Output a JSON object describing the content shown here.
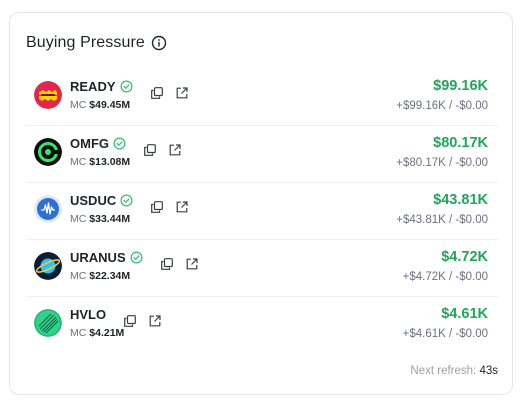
{
  "widget": {
    "title": "Buying Pressure",
    "info_icon": "info-circle-icon",
    "footer_label": "Next refresh:",
    "footer_value": "43s"
  },
  "colors": {
    "positive": "#22a45a",
    "verified": "#2fbf71",
    "muted": "#6b7280"
  },
  "tokens": [
    {
      "name": "READY",
      "mc_label": "MC",
      "mc_value": "$49.45M",
      "amount": "$99.16K",
      "delta": "+$99.16K / -$0.00",
      "logo_icon": "ready-token-logo",
      "logo_color": "#e2264d"
    },
    {
      "name": "OMFG",
      "mc_label": "MC",
      "mc_value": "$13.08M",
      "amount": "$80.17K",
      "delta": "+$80.17K / -$0.00",
      "logo_icon": "omfg-token-logo",
      "logo_color": "#0c0f0c"
    },
    {
      "name": "USDUC",
      "mc_label": "MC",
      "mc_value": "$33.44M",
      "amount": "$43.81K",
      "delta": "+$43.81K / -$0.00",
      "logo_icon": "usduc-token-logo",
      "logo_color": "#2f6fd1"
    },
    {
      "name": "URANUS",
      "mc_label": "MC",
      "mc_value": "$22.34M",
      "amount": "$4.72K",
      "delta": "+$4.72K / -$0.00",
      "logo_icon": "uranus-token-logo",
      "logo_color": "#0b1e33"
    },
    {
      "name": "HVLO",
      "mc_label": "MC",
      "mc_value": "$4.21M",
      "amount": "$4.61K",
      "delta": "+$4.61K / -$0.00",
      "logo_icon": "hvlo-token-logo",
      "logo_color": "#2fd38a"
    }
  ]
}
